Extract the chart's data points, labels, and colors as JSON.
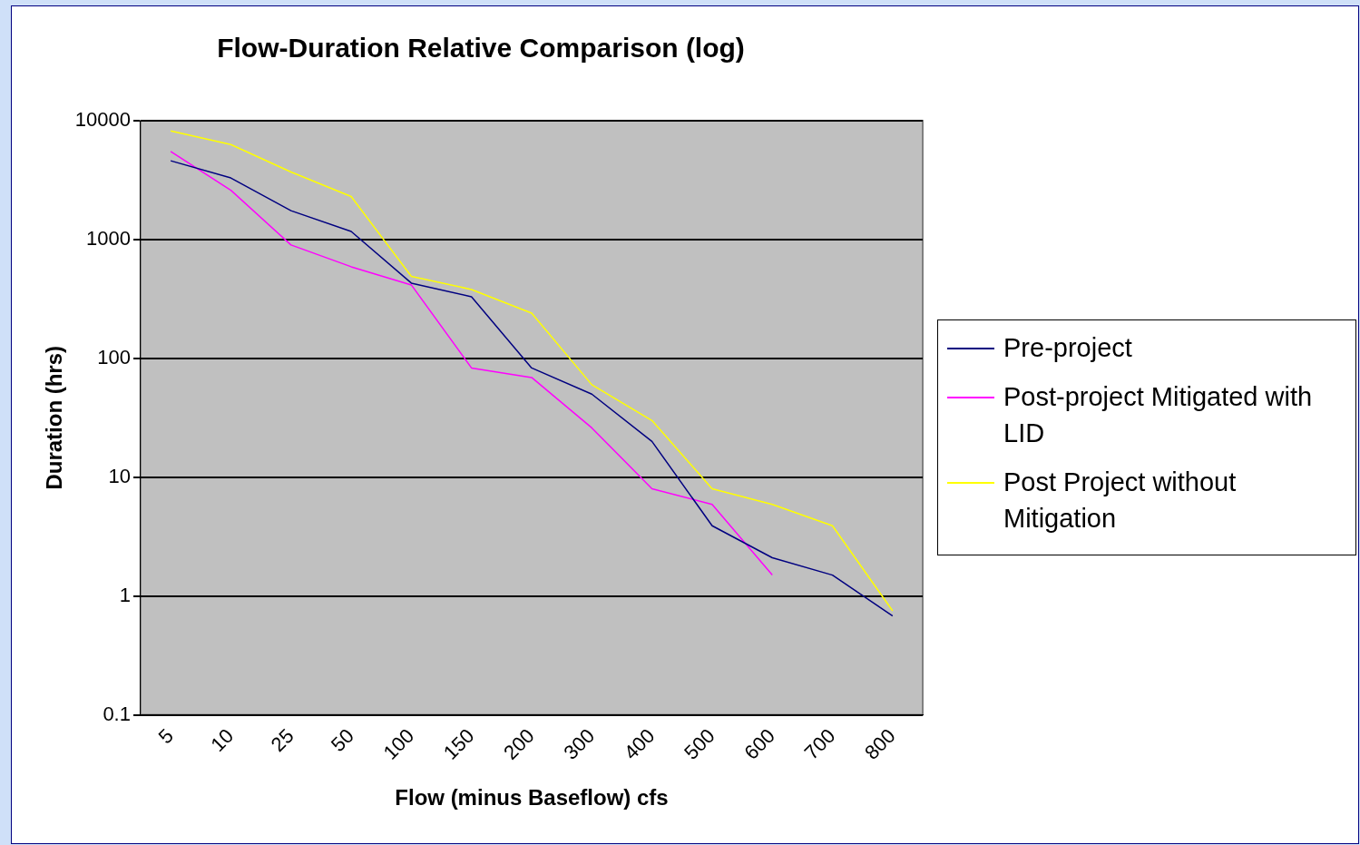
{
  "chart_data": {
    "type": "line",
    "title": "Flow-Duration Relative Comparison (log)",
    "xlabel": "Flow (minus Baseflow) cfs",
    "ylabel": "Duration (hrs)",
    "categories": [
      "5",
      "10",
      "25",
      "50",
      "100",
      "150",
      "200",
      "300",
      "400",
      "500",
      "600",
      "700",
      "800"
    ],
    "series": [
      {
        "name": "Pre-project",
        "color": "#000080",
        "values": [
          4600,
          3300,
          1750,
          1170,
          430,
          330,
          83,
          50,
          20,
          3.9,
          2.1,
          1.5,
          0.68
        ]
      },
      {
        "name": "Post-project Mitigated with LID",
        "color": "#ff00ff",
        "values": [
          5500,
          2600,
          900,
          590,
          415,
          83,
          69,
          26,
          8,
          5.9,
          1.5,
          null,
          null
        ]
      },
      {
        "name": "Post Project without Mitigation",
        "color": "#ffff00",
        "values": [
          8200,
          6300,
          3700,
          2300,
          490,
          380,
          240,
          60,
          30,
          8,
          5.9,
          3.9,
          0.75
        ]
      }
    ],
    "log": "y",
    "ylim": [
      0.1,
      10000
    ],
    "yticks": [
      0.1,
      1,
      10,
      100,
      1000,
      10000
    ],
    "grid": "y",
    "legend": "right",
    "marker": "none",
    "line_style": "solid"
  }
}
